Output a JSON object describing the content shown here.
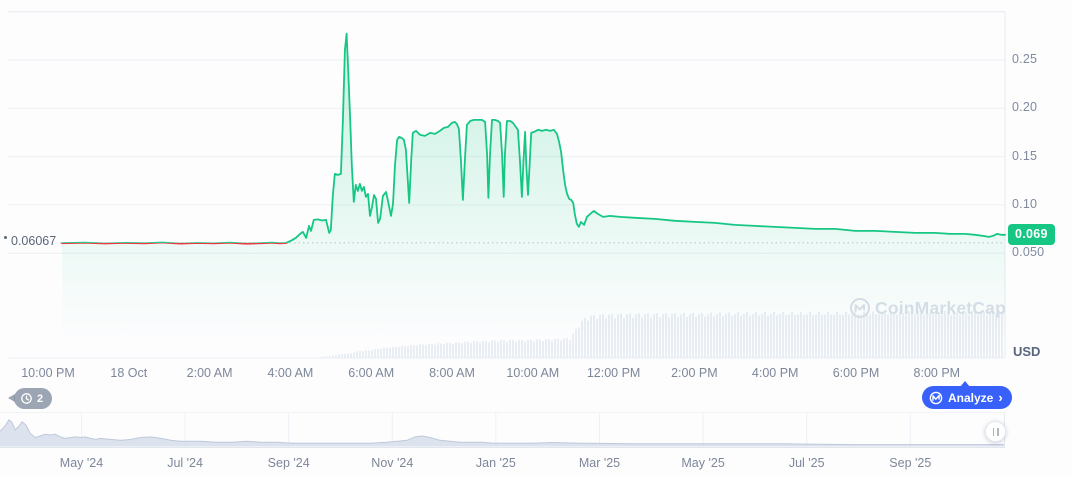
{
  "page": {
    "currency_label": "USD"
  },
  "watermark": {
    "text": "CoinMarketCap"
  },
  "footer": {
    "history_badge": {
      "count": "2"
    },
    "analyze_button": {
      "label": "Analyze",
      "chevron": "›"
    }
  },
  "chart_data": [
    {
      "id": "price_chart",
      "type": "line",
      "title": "",
      "ylabel": "USD",
      "x_unit_hours_since": "10:00 PM",
      "grid": true,
      "ylim": [
        0.043,
        0.3
      ],
      "x_ticks": [
        {
          "t": 0,
          "label": "10:00 PM"
        },
        {
          "t": 2,
          "label": "18 Oct"
        },
        {
          "t": 4,
          "label": "2:00 AM"
        },
        {
          "t": 6,
          "label": "4:00 AM"
        },
        {
          "t": 8,
          "label": "6:00 AM"
        },
        {
          "t": 10,
          "label": "8:00 AM"
        },
        {
          "t": 12,
          "label": "10:00 AM"
        },
        {
          "t": 14,
          "label": "12:00 PM"
        },
        {
          "t": 16,
          "label": "2:00 PM"
        },
        {
          "t": 18,
          "label": "4:00 PM"
        },
        {
          "t": 20,
          "label": "6:00 PM"
        },
        {
          "t": 22,
          "label": "8:00 PM"
        }
      ],
      "y_ticks": [
        {
          "v": 0.25,
          "label": "0.25"
        },
        {
          "v": 0.2,
          "label": "0.20"
        },
        {
          "v": 0.15,
          "label": "0.15"
        },
        {
          "v": 0.1,
          "label": "0.10"
        },
        {
          "v": 0.05,
          "label": "0.050"
        }
      ],
      "y_top_grid_value": 0.3,
      "reference": {
        "value": 0.06067,
        "label": "0.06067",
        "style": "dotted"
      },
      "last": {
        "value": 0.069,
        "label": "0.069"
      },
      "colors": {
        "up": "#16c784",
        "down": "#ea3943",
        "badge": "#16c784",
        "volume": "#e7ebf3",
        "grid": "#edf0f4",
        "border": "#e7eaef",
        "dotted": "#b9c2cf",
        "watermark": "#d9dee8"
      },
      "series": [
        {
          "name": "price",
          "points": [
            [
              0.35,
              0.0604
            ],
            [
              0.92,
              0.0609
            ],
            [
              1.41,
              0.06
            ],
            [
              1.91,
              0.0607
            ],
            [
              2.4,
              0.0602
            ],
            [
              2.82,
              0.0611
            ],
            [
              3.27,
              0.0599
            ],
            [
              3.71,
              0.0606
            ],
            [
              4.11,
              0.0601
            ],
            [
              4.5,
              0.0609
            ],
            [
              4.9,
              0.0598
            ],
            [
              5.3,
              0.0604
            ],
            [
              5.54,
              0.0609
            ],
            [
              5.74,
              0.0602
            ],
            [
              5.89,
              0.0606
            ],
            [
              6.04,
              0.0635
            ],
            [
              6.14,
              0.066
            ],
            [
              6.24,
              0.07
            ],
            [
              6.31,
              0.0721
            ],
            [
              6.39,
              0.0658
            ],
            [
              6.46,
              0.0783
            ],
            [
              6.51,
              0.0731
            ],
            [
              6.58,
              0.0845
            ],
            [
              6.68,
              0.085
            ],
            [
              6.78,
              0.0838
            ],
            [
              6.88,
              0.0845
            ],
            [
              6.96,
              0.071
            ],
            [
              7.0,
              0.0741
            ],
            [
              7.05,
              0.1093
            ],
            [
              7.1,
              0.1321
            ],
            [
              7.18,
              0.1311
            ],
            [
              7.25,
              0.1321
            ],
            [
              7.3,
              0.188
            ],
            [
              7.35,
              0.2604
            ],
            [
              7.39,
              0.2772
            ],
            [
              7.43,
              0.2397
            ],
            [
              7.48,
              0.188
            ],
            [
              7.52,
              0.1414
            ],
            [
              7.57,
              0.1031
            ],
            [
              7.62,
              0.1207
            ],
            [
              7.67,
              0.1145
            ],
            [
              7.72,
              0.1217
            ],
            [
              7.77,
              0.1145
            ],
            [
              7.82,
              0.1186
            ],
            [
              7.87,
              0.1083
            ],
            [
              7.92,
              0.1114
            ],
            [
              7.97,
              0.0886
            ],
            [
              8.02,
              0.0979
            ],
            [
              8.07,
              0.1103
            ],
            [
              8.12,
              0.1062
            ],
            [
              8.17,
              0.0814
            ],
            [
              8.22,
              0.0855
            ],
            [
              8.29,
              0.1093
            ],
            [
              8.37,
              0.1135
            ],
            [
              8.44,
              0.099
            ],
            [
              8.49,
              0.0886
            ],
            [
              8.54,
              0.101
            ],
            [
              8.59,
              0.1414
            ],
            [
              8.64,
              0.1673
            ],
            [
              8.69,
              0.1704
            ],
            [
              8.76,
              0.1693
            ],
            [
              8.81,
              0.1673
            ],
            [
              8.86,
              0.157
            ],
            [
              8.94,
              0.1021
            ],
            [
              8.99,
              0.1466
            ],
            [
              9.03,
              0.1745
            ],
            [
              9.11,
              0.1766
            ],
            [
              9.21,
              0.1725
            ],
            [
              9.33,
              0.1714
            ],
            [
              9.46,
              0.1745
            ],
            [
              9.58,
              0.1735
            ],
            [
              9.7,
              0.1766
            ],
            [
              9.8,
              0.1797
            ],
            [
              9.9,
              0.1807
            ],
            [
              10.0,
              0.1849
            ],
            [
              10.07,
              0.1859
            ],
            [
              10.12,
              0.1838
            ],
            [
              10.17,
              0.1787
            ],
            [
              10.22,
              0.1466
            ],
            [
              10.27,
              0.1052
            ],
            [
              10.32,
              0.1466
            ],
            [
              10.37,
              0.1828
            ],
            [
              10.45,
              0.1869
            ],
            [
              10.54,
              0.188
            ],
            [
              10.64,
              0.188
            ],
            [
              10.74,
              0.188
            ],
            [
              10.82,
              0.1859
            ],
            [
              10.87,
              0.1518
            ],
            [
              10.9,
              0.1072
            ],
            [
              10.94,
              0.1518
            ],
            [
              10.99,
              0.188
            ],
            [
              11.06,
              0.188
            ],
            [
              11.14,
              0.1869
            ],
            [
              11.19,
              0.1849
            ],
            [
              11.24,
              0.1518
            ],
            [
              11.28,
              0.1083
            ],
            [
              11.31,
              0.1518
            ],
            [
              11.36,
              0.1869
            ],
            [
              11.44,
              0.1869
            ],
            [
              11.51,
              0.1849
            ],
            [
              11.58,
              0.1807
            ],
            [
              11.63,
              0.1777
            ],
            [
              11.68,
              0.1466
            ],
            [
              11.73,
              0.1083
            ],
            [
              11.77,
              0.1466
            ],
            [
              11.81,
              0.1756
            ],
            [
              11.84,
              0.1414
            ],
            [
              11.88,
              0.1104
            ],
            [
              11.92,
              0.1414
            ],
            [
              11.96,
              0.1745
            ],
            [
              12.03,
              0.1756
            ],
            [
              12.13,
              0.1777
            ],
            [
              12.23,
              0.1766
            ],
            [
              12.33,
              0.1777
            ],
            [
              12.43,
              0.1766
            ],
            [
              12.52,
              0.1777
            ],
            [
              12.6,
              0.1735
            ],
            [
              12.65,
              0.1652
            ],
            [
              12.7,
              0.1549
            ],
            [
              12.75,
              0.1362
            ],
            [
              12.8,
              0.1207
            ],
            [
              12.85,
              0.1114
            ],
            [
              12.9,
              0.1062
            ],
            [
              12.95,
              0.1052
            ],
            [
              13.0,
              0.1021
            ],
            [
              13.04,
              0.0907
            ],
            [
              13.09,
              0.0804
            ],
            [
              13.14,
              0.0772
            ],
            [
              13.19,
              0.0824
            ],
            [
              13.27,
              0.0793
            ],
            [
              13.34,
              0.0876
            ],
            [
              13.42,
              0.0907
            ],
            [
              13.51,
              0.0938
            ],
            [
              13.61,
              0.0907
            ],
            [
              13.74,
              0.0876
            ],
            [
              13.91,
              0.0886
            ],
            [
              14.16,
              0.0876
            ],
            [
              14.53,
              0.0866
            ],
            [
              15.02,
              0.0855
            ],
            [
              15.52,
              0.0835
            ],
            [
              16.01,
              0.0824
            ],
            [
              16.51,
              0.0814
            ],
            [
              17.0,
              0.0793
            ],
            [
              17.5,
              0.0783
            ],
            [
              17.99,
              0.0772
            ],
            [
              18.49,
              0.0762
            ],
            [
              18.99,
              0.0752
            ],
            [
              19.48,
              0.0752
            ],
            [
              19.98,
              0.0731
            ],
            [
              20.47,
              0.0731
            ],
            [
              20.97,
              0.0721
            ],
            [
              21.46,
              0.071
            ],
            [
              21.96,
              0.071
            ],
            [
              22.33,
              0.07
            ],
            [
              22.7,
              0.07
            ],
            [
              22.95,
              0.069
            ],
            [
              23.14,
              0.0679
            ],
            [
              23.29,
              0.0669
            ],
            [
              23.39,
              0.0679
            ],
            [
              23.49,
              0.07
            ],
            [
              23.59,
              0.069
            ],
            [
              23.69,
              0.069
            ]
          ]
        }
      ],
      "volume_profile": [
        [
          6.6,
          0.0
        ],
        [
          6.73,
          0.02
        ],
        [
          6.98,
          0.04
        ],
        [
          7.23,
          0.08
        ],
        [
          7.48,
          0.1
        ],
        [
          7.72,
          0.15
        ],
        [
          7.97,
          0.17
        ],
        [
          8.22,
          0.21
        ],
        [
          8.47,
          0.23
        ],
        [
          8.71,
          0.25
        ],
        [
          8.96,
          0.27
        ],
        [
          9.21,
          0.29
        ],
        [
          9.46,
          0.3
        ],
        [
          9.7,
          0.31
        ],
        [
          10.07,
          0.33
        ],
        [
          10.45,
          0.35
        ],
        [
          10.82,
          0.36
        ],
        [
          11.19,
          0.38
        ],
        [
          11.56,
          0.38
        ],
        [
          11.93,
          0.39
        ],
        [
          12.3,
          0.4
        ],
        [
          12.67,
          0.41
        ],
        [
          12.92,
          0.42
        ],
        [
          13.04,
          0.58
        ],
        [
          13.17,
          0.75
        ],
        [
          13.29,
          0.85
        ],
        [
          13.42,
          0.9
        ],
        [
          13.66,
          0.92
        ],
        [
          14.16,
          0.93
        ],
        [
          14.65,
          0.94
        ],
        [
          15.64,
          0.94
        ],
        [
          16.63,
          0.95
        ],
        [
          17.62,
          0.96
        ],
        [
          18.61,
          0.96
        ],
        [
          19.6,
          0.96
        ],
        [
          20.59,
          0.97
        ],
        [
          21.58,
          0.98
        ],
        [
          22.57,
          0.98
        ],
        [
          23.69,
          1.0
        ]
      ]
    },
    {
      "id": "range_navigator",
      "type": "area",
      "fill": "#dce2ee",
      "x_tick_labels": [
        "May '24",
        "Jul '24",
        "Sep '24",
        "Nov '24",
        "Jan '25",
        "Mar '25",
        "May '25",
        "Jul '25",
        "Sep '25"
      ],
      "points": [
        [
          0,
          0.49
        ],
        [
          0.005,
          0.66
        ],
        [
          0.009,
          0.86
        ],
        [
          0.012,
          0.77
        ],
        [
          0.015,
          0.54
        ],
        [
          0.018,
          0.63
        ],
        [
          0.022,
          0.8
        ],
        [
          0.026,
          0.69
        ],
        [
          0.03,
          0.43
        ],
        [
          0.035,
          0.29
        ],
        [
          0.04,
          0.34
        ],
        [
          0.045,
          0.4
        ],
        [
          0.05,
          0.37
        ],
        [
          0.055,
          0.4
        ],
        [
          0.06,
          0.31
        ],
        [
          0.065,
          0.26
        ],
        [
          0.07,
          0.29
        ],
        [
          0.075,
          0.31
        ],
        [
          0.08,
          0.29
        ],
        [
          0.085,
          0.31
        ],
        [
          0.09,
          0.26
        ],
        [
          0.095,
          0.23
        ],
        [
          0.1,
          0.26
        ],
        [
          0.11,
          0.23
        ],
        [
          0.12,
          0.2
        ],
        [
          0.13,
          0.23
        ],
        [
          0.14,
          0.29
        ],
        [
          0.15,
          0.31
        ],
        [
          0.155,
          0.29
        ],
        [
          0.16,
          0.26
        ],
        [
          0.17,
          0.2
        ],
        [
          0.18,
          0.17
        ],
        [
          0.19,
          0.17
        ],
        [
          0.2,
          0.17
        ],
        [
          0.215,
          0.14
        ],
        [
          0.23,
          0.14
        ],
        [
          0.245,
          0.17
        ],
        [
          0.26,
          0.14
        ],
        [
          0.275,
          0.14
        ],
        [
          0.29,
          0.11
        ],
        [
          0.31,
          0.11
        ],
        [
          0.33,
          0.11
        ],
        [
          0.35,
          0.11
        ],
        [
          0.37,
          0.11
        ],
        [
          0.385,
          0.14
        ],
        [
          0.395,
          0.17
        ],
        [
          0.405,
          0.2
        ],
        [
          0.413,
          0.31
        ],
        [
          0.42,
          0.34
        ],
        [
          0.428,
          0.29
        ],
        [
          0.438,
          0.2
        ],
        [
          0.448,
          0.17
        ],
        [
          0.458,
          0.14
        ],
        [
          0.47,
          0.14
        ],
        [
          0.48,
          0.14
        ],
        [
          0.49,
          0.11
        ],
        [
          0.51,
          0.11
        ],
        [
          0.53,
          0.11
        ],
        [
          0.55,
          0.13
        ],
        [
          0.575,
          0.11
        ],
        [
          0.6,
          0.1
        ],
        [
          0.63,
          0.09
        ],
        [
          0.66,
          0.09
        ],
        [
          0.69,
          0.09
        ],
        [
          0.72,
          0.09
        ],
        [
          0.75,
          0.09
        ],
        [
          0.78,
          0.09
        ],
        [
          0.815,
          0.07
        ],
        [
          0.85,
          0.06
        ],
        [
          0.885,
          0.06
        ],
        [
          0.92,
          0.06
        ],
        [
          0.955,
          0.06
        ],
        [
          1.0,
          0.06
        ]
      ]
    }
  ]
}
